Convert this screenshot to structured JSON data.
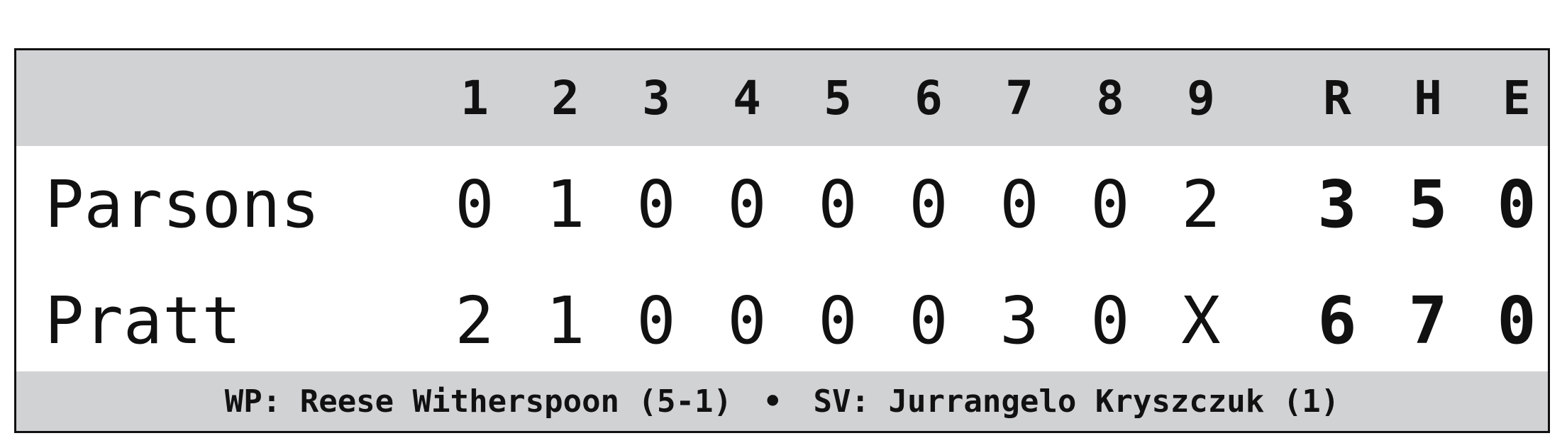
{
  "header": {
    "innings": [
      "1",
      "2",
      "3",
      "4",
      "5",
      "6",
      "7",
      "8",
      "9"
    ],
    "totals": [
      "R",
      "H",
      "E"
    ]
  },
  "teams": [
    {
      "name": "Parsons",
      "innings": [
        "0",
        "1",
        "0",
        "0",
        "0",
        "0",
        "0",
        "0",
        "2"
      ],
      "totals": [
        "3",
        "5",
        "0"
      ]
    },
    {
      "name": "Pratt",
      "innings": [
        "2",
        "1",
        "0",
        "0",
        "0",
        "0",
        "3",
        "0",
        "X"
      ],
      "totals": [
        "6",
        "7",
        "0"
      ]
    }
  ],
  "footer": {
    "winning_pitcher": "WP: Reese Witherspoon (5-1)",
    "separator": "•",
    "save": "SV: Jurrangelo Kryszczuk (1)"
  },
  "colors": {
    "header_bg": "#d1d2d4",
    "border": "#111111",
    "text": "#111111"
  }
}
